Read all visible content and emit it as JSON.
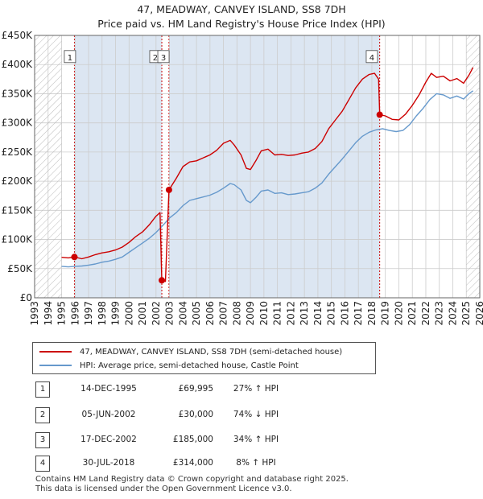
{
  "title_line1": "47, MEADWAY, CANVEY ISLAND, SS8 7DH",
  "title_line2": "Price paid vs. HM Land Registry's House Price Index (HPI)",
  "colors": {
    "price": "#cc0000",
    "hpi": "#6699cc",
    "shade": "#dce6f2",
    "grid": "#cccccc"
  },
  "legend": {
    "price_label": "47, MEADWAY, CANVEY ISLAND, SS8 7DH (semi-detached house)",
    "hpi_label": "HPI: Average price, semi-detached house, Castle Point"
  },
  "transactions": [
    {
      "id": "1",
      "date": "14-DEC-1995",
      "price": "£69,995",
      "hpi": "27% ↑ HPI"
    },
    {
      "id": "2",
      "date": "05-JUN-2002",
      "price": "£30,000",
      "hpi": "74% ↓ HPI"
    },
    {
      "id": "3",
      "date": "17-DEC-2002",
      "price": "£185,000",
      "hpi": "34% ↑ HPI"
    },
    {
      "id": "4",
      "date": "30-JUL-2018",
      "price": "£314,000",
      "hpi": "8% ↑ HPI"
    }
  ],
  "footer": {
    "line1": "Contains HM Land Registry data © Crown copyright and database right 2025.",
    "line2": "This data is licensed under the Open Government Licence v3.0."
  },
  "chart_data": {
    "type": "line",
    "title": "Price paid vs. HM Land Registry's House Price Index (HPI)",
    "xlim": [
      1993,
      2026
    ],
    "ylim": [
      0,
      450000
    ],
    "x_ticks": [
      1993,
      1994,
      1995,
      1996,
      1997,
      1998,
      1999,
      2000,
      2001,
      2002,
      2003,
      2004,
      2005,
      2006,
      2007,
      2008,
      2009,
      2010,
      2011,
      2012,
      2013,
      2014,
      2015,
      2016,
      2017,
      2018,
      2019,
      2020,
      2021,
      2022,
      2023,
      2024,
      2025,
      2026
    ],
    "y_ticks": [
      {
        "value": 0,
        "label": "£0"
      },
      {
        "value": 50000,
        "label": "£50K"
      },
      {
        "value": 100000,
        "label": "£100K"
      },
      {
        "value": 150000,
        "label": "£150K"
      },
      {
        "value": 200000,
        "label": "£200K"
      },
      {
        "value": 250000,
        "label": "£250K"
      },
      {
        "value": 300000,
        "label": "£300K"
      },
      {
        "value": 350000,
        "label": "£350K"
      },
      {
        "value": 400000,
        "label": "£400K"
      },
      {
        "value": 450000,
        "label": "£450K"
      }
    ],
    "data_start": 1995.0,
    "data_end": 2025.5,
    "hatched_before": 1995.0,
    "hatched_after": 2025.0,
    "shaded_bands": [
      [
        1995.95,
        2002.43
      ],
      [
        2002.96,
        2018.58
      ]
    ],
    "series": [
      {
        "name": "47, MEADWAY, CANVEY ISLAND, SS8 7DH (semi-detached house)",
        "points": [
          [
            1995.0,
            69500
          ],
          [
            1995.5,
            68500
          ],
          [
            1995.95,
            69995
          ],
          [
            1996.5,
            67000
          ],
          [
            1997.0,
            70000
          ],
          [
            1997.5,
            74000
          ],
          [
            1998.0,
            77000
          ],
          [
            1998.5,
            79000
          ],
          [
            1999.0,
            82000
          ],
          [
            1999.5,
            87000
          ],
          [
            2000.0,
            95000
          ],
          [
            2000.5,
            105000
          ],
          [
            2001.0,
            113000
          ],
          [
            2001.5,
            125000
          ],
          [
            2002.0,
            140000
          ],
          [
            2002.3,
            146000
          ],
          [
            2002.43,
            30000
          ],
          [
            2002.7,
            28000
          ],
          [
            2002.96,
            185000
          ],
          [
            2003.5,
            205000
          ],
          [
            2004.0,
            225000
          ],
          [
            2004.5,
            233000
          ],
          [
            2005.0,
            235000
          ],
          [
            2005.5,
            240000
          ],
          [
            2006.0,
            245000
          ],
          [
            2006.5,
            253000
          ],
          [
            2007.0,
            265000
          ],
          [
            2007.5,
            270000
          ],
          [
            2007.8,
            262000
          ],
          [
            2008.3,
            245000
          ],
          [
            2008.7,
            222000
          ],
          [
            2009.0,
            220000
          ],
          [
            2009.4,
            235000
          ],
          [
            2009.8,
            252000
          ],
          [
            2010.3,
            255000
          ],
          [
            2010.8,
            245000
          ],
          [
            2011.3,
            246000
          ],
          [
            2011.8,
            244000
          ],
          [
            2012.3,
            245000
          ],
          [
            2012.8,
            248000
          ],
          [
            2013.3,
            250000
          ],
          [
            2013.8,
            256000
          ],
          [
            2014.3,
            268000
          ],
          [
            2014.8,
            290000
          ],
          [
            2015.3,
            305000
          ],
          [
            2015.8,
            320000
          ],
          [
            2016.3,
            340000
          ],
          [
            2016.8,
            360000
          ],
          [
            2017.3,
            375000
          ],
          [
            2017.8,
            383000
          ],
          [
            2018.2,
            385000
          ],
          [
            2018.5,
            375000
          ],
          [
            2018.58,
            314000
          ],
          [
            2019.0,
            312000
          ],
          [
            2019.5,
            306000
          ],
          [
            2020.0,
            305000
          ],
          [
            2020.5,
            315000
          ],
          [
            2021.0,
            330000
          ],
          [
            2021.5,
            348000
          ],
          [
            2022.0,
            370000
          ],
          [
            2022.4,
            385000
          ],
          [
            2022.8,
            378000
          ],
          [
            2023.3,
            380000
          ],
          [
            2023.8,
            372000
          ],
          [
            2024.3,
            376000
          ],
          [
            2024.8,
            368000
          ],
          [
            2025.2,
            382000
          ],
          [
            2025.5,
            395000
          ]
        ]
      },
      {
        "name": "HPI: Average price, semi-detached house, Castle Point",
        "points": [
          [
            1995.0,
            54000
          ],
          [
            1995.5,
            53000
          ],
          [
            1996.0,
            54000
          ],
          [
            1996.5,
            54500
          ],
          [
            1997.0,
            56000
          ],
          [
            1997.5,
            58000
          ],
          [
            1998.0,
            61000
          ],
          [
            1998.5,
            63000
          ],
          [
            1999.0,
            66000
          ],
          [
            1999.5,
            70000
          ],
          [
            2000.0,
            78000
          ],
          [
            2000.5,
            86000
          ],
          [
            2001.0,
            94000
          ],
          [
            2001.5,
            102000
          ],
          [
            2002.0,
            112000
          ],
          [
            2002.5,
            124000
          ],
          [
            2003.0,
            137000
          ],
          [
            2003.5,
            146000
          ],
          [
            2004.0,
            158000
          ],
          [
            2004.5,
            167000
          ],
          [
            2005.0,
            170000
          ],
          [
            2005.5,
            173000
          ],
          [
            2006.0,
            176000
          ],
          [
            2006.5,
            181000
          ],
          [
            2007.0,
            188000
          ],
          [
            2007.5,
            196000
          ],
          [
            2007.8,
            194000
          ],
          [
            2008.3,
            185000
          ],
          [
            2008.7,
            167000
          ],
          [
            2009.0,
            163000
          ],
          [
            2009.4,
            172000
          ],
          [
            2009.8,
            183000
          ],
          [
            2010.3,
            185000
          ],
          [
            2010.8,
            179000
          ],
          [
            2011.3,
            180000
          ],
          [
            2011.8,
            177000
          ],
          [
            2012.3,
            178000
          ],
          [
            2012.8,
            180000
          ],
          [
            2013.3,
            182000
          ],
          [
            2013.8,
            188000
          ],
          [
            2014.3,
            197000
          ],
          [
            2014.8,
            212000
          ],
          [
            2015.3,
            225000
          ],
          [
            2015.8,
            238000
          ],
          [
            2016.3,
            252000
          ],
          [
            2016.8,
            266000
          ],
          [
            2017.3,
            277000
          ],
          [
            2017.8,
            284000
          ],
          [
            2018.3,
            288000
          ],
          [
            2018.8,
            290000
          ],
          [
            2019.3,
            287000
          ],
          [
            2019.8,
            285000
          ],
          [
            2020.3,
            287000
          ],
          [
            2020.8,
            297000
          ],
          [
            2021.3,
            312000
          ],
          [
            2021.8,
            325000
          ],
          [
            2022.3,
            340000
          ],
          [
            2022.8,
            350000
          ],
          [
            2023.3,
            348000
          ],
          [
            2023.8,
            342000
          ],
          [
            2024.3,
            346000
          ],
          [
            2024.8,
            341000
          ],
          [
            2025.2,
            350000
          ],
          [
            2025.5,
            355000
          ]
        ]
      }
    ],
    "markers": [
      {
        "label": "1",
        "x": 1995.95,
        "y": 69995,
        "box_x": 1995.62
      },
      {
        "label": "2",
        "x": 2002.43,
        "y": 30000,
        "box_x": 2001.95
      },
      {
        "label": "3",
        "x": 2002.96,
        "y": 185000,
        "box_x": 2002.55
      },
      {
        "label": "4",
        "x": 2018.58,
        "y": 314000,
        "box_x": 2018.0
      }
    ],
    "marker_box_y": 413000
  }
}
